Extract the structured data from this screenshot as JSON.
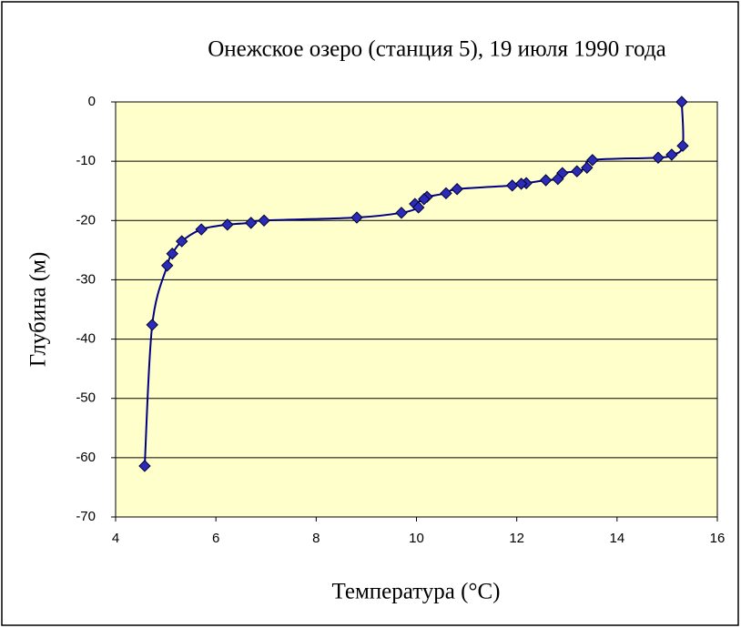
{
  "chart_data": {
    "type": "scatter",
    "title": "Онежское озеро (станция 5), 19 июля 1990 года",
    "x_label": "Температура (°C)",
    "y_label": "Глубина (м)",
    "x": [
      15.29,
      15.31,
      15.09,
      14.82,
      13.51,
      13.4,
      13.2,
      12.91,
      12.82,
      12.58,
      12.19,
      12.09,
      11.91,
      10.81,
      10.59,
      10.21,
      10.15,
      9.97,
      10.04,
      9.7,
      8.81,
      6.96,
      6.7,
      6.23,
      5.71,
      5.32,
      5.13,
      5.03,
      4.73,
      4.58
    ],
    "series": [
      {
        "name": "Глубина",
        "color": "#000080",
        "marker_color": "#2b2bb8",
        "values": [
          0,
          -7.4,
          -8.9,
          -9.4,
          -9.8,
          -11.1,
          -11.7,
          -12.0,
          -13.0,
          -13.2,
          -13.7,
          -13.8,
          -14.1,
          -14.7,
          -15.4,
          -16.0,
          -16.4,
          -17.2,
          -17.8,
          -18.7,
          -19.5,
          -20.0,
          -20.4,
          -20.7,
          -21.5,
          -23.5,
          -25.6,
          -27.6,
          -37.6,
          -61.4
        ]
      }
    ],
    "xlim": [
      4,
      16
    ],
    "xticks": [
      4,
      6,
      8,
      10,
      12,
      14,
      16
    ],
    "ylim": [
      -70,
      0
    ],
    "yticks": [
      0,
      -10,
      -20,
      -30,
      -40,
      -50,
      -60,
      -70
    ],
    "grid": true,
    "plot_background": "#ffffcc"
  }
}
